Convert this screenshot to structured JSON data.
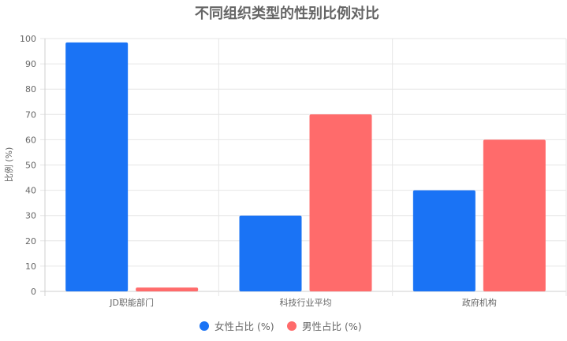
{
  "chart_data": {
    "type": "bar",
    "title": "不同组织类型的性别比例对比",
    "categories": [
      "JD职能部门",
      "科技行业平均",
      "政府机构"
    ],
    "series": [
      {
        "name": "女性占比 (%)",
        "values": [
          98.5,
          30,
          40
        ],
        "color": "#1a73f5"
      },
      {
        "name": "男性占比 (%)",
        "values": [
          1.5,
          70,
          60
        ],
        "color": "#ff6b6b"
      }
    ],
    "xlabel": "",
    "ylabel": "比例 (%)",
    "ylim": [
      0,
      100
    ],
    "yticks": [
      0,
      10,
      20,
      30,
      40,
      50,
      60,
      70,
      80,
      90,
      100
    ],
    "grid": true,
    "legend_position": "bottom"
  }
}
